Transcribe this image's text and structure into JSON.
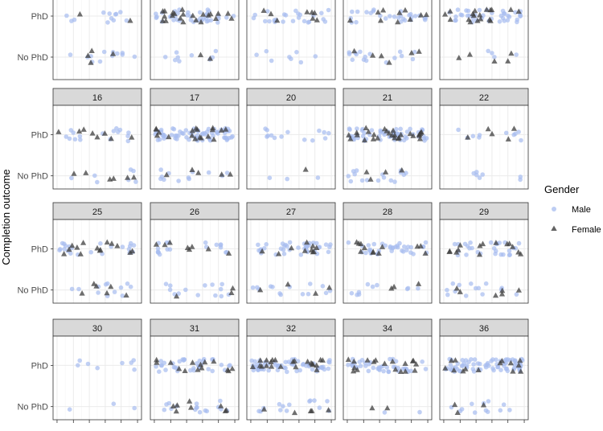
{
  "chart_data": {
    "type": "scatter",
    "ylabel": "Completion outcome",
    "y_categories": [
      "PhD",
      "No PhD"
    ],
    "x_range": [
      0,
      1
    ],
    "grid": true,
    "legend": {
      "title": "Gender",
      "position": "right",
      "entries": [
        {
          "label": "Male",
          "shape": "circle",
          "color": "#a7bcef"
        },
        {
          "label": "Female",
          "shape": "triangle",
          "color": "#3d3d3d"
        }
      ]
    },
    "panels": [
      {
        "label": "",
        "row": 0,
        "col": 0,
        "counts": {
          "PhD": {
            "Male": 12,
            "Female": 2
          },
          "No PhD": {
            "Male": 12,
            "Female": 4
          }
        }
      },
      {
        "label": "",
        "row": 0,
        "col": 1,
        "counts": {
          "PhD": {
            "Male": 38,
            "Female": 22
          },
          "No PhD": {
            "Male": 9,
            "Female": 2
          }
        }
      },
      {
        "label": "",
        "row": 0,
        "col": 2,
        "counts": {
          "PhD": {
            "Male": 24,
            "Female": 8
          },
          "No PhD": {
            "Male": 8,
            "Female": 0
          }
        }
      },
      {
        "label": "",
        "row": 0,
        "col": 3,
        "counts": {
          "PhD": {
            "Male": 28,
            "Female": 10
          },
          "No PhD": {
            "Male": 16,
            "Female": 6
          }
        }
      },
      {
        "label": "",
        "row": 0,
        "col": 4,
        "counts": {
          "PhD": {
            "Male": 40,
            "Female": 18
          },
          "No PhD": {
            "Male": 4,
            "Female": 5
          }
        }
      },
      {
        "label": "16",
        "row": 1,
        "col": 0,
        "counts": {
          "PhD": {
            "Male": 16,
            "Female": 8
          },
          "No PhD": {
            "Male": 7,
            "Female": 6
          }
        }
      },
      {
        "label": "17",
        "row": 1,
        "col": 1,
        "counts": {
          "PhD": {
            "Male": 70,
            "Female": 18
          },
          "No PhD": {
            "Male": 12,
            "Female": 5
          }
        }
      },
      {
        "label": "20",
        "row": 1,
        "col": 2,
        "counts": {
          "PhD": {
            "Male": 14,
            "Female": 0
          },
          "No PhD": {
            "Male": 3,
            "Female": 1
          }
        }
      },
      {
        "label": "21",
        "row": 1,
        "col": 3,
        "counts": {
          "PhD": {
            "Male": 60,
            "Female": 28
          },
          "No PhD": {
            "Male": 16,
            "Female": 4
          }
        }
      },
      {
        "label": "22",
        "row": 1,
        "col": 4,
        "counts": {
          "PhD": {
            "Male": 10,
            "Female": 5
          },
          "No PhD": {
            "Male": 7,
            "Female": 0
          }
        }
      },
      {
        "label": "25",
        "row": 2,
        "col": 0,
        "counts": {
          "PhD": {
            "Male": 22,
            "Female": 14
          },
          "No PhD": {
            "Male": 12,
            "Female": 6
          }
        }
      },
      {
        "label": "26",
        "row": 2,
        "col": 1,
        "counts": {
          "PhD": {
            "Male": 18,
            "Female": 8
          },
          "No PhD": {
            "Male": 14,
            "Female": 3
          }
        }
      },
      {
        "label": "27",
        "row": 2,
        "col": 2,
        "counts": {
          "PhD": {
            "Male": 38,
            "Female": 10
          },
          "No PhD": {
            "Male": 14,
            "Female": 4
          }
        }
      },
      {
        "label": "28",
        "row": 2,
        "col": 3,
        "counts": {
          "PhD": {
            "Male": 36,
            "Female": 12
          },
          "No PhD": {
            "Male": 10,
            "Female": 3
          }
        }
      },
      {
        "label": "29",
        "row": 2,
        "col": 4,
        "counts": {
          "PhD": {
            "Male": 28,
            "Female": 14
          },
          "No PhD": {
            "Male": 14,
            "Female": 6
          }
        }
      },
      {
        "label": "30",
        "row": 3,
        "col": 0,
        "counts": {
          "PhD": {
            "Male": 8,
            "Female": 0
          },
          "No PhD": {
            "Male": 3,
            "Female": 0
          }
        }
      },
      {
        "label": "31",
        "row": 3,
        "col": 1,
        "counts": {
          "PhD": {
            "Male": 36,
            "Female": 14
          },
          "No PhD": {
            "Male": 16,
            "Female": 8
          }
        }
      },
      {
        "label": "32",
        "row": 3,
        "col": 2,
        "counts": {
          "PhD": {
            "Male": 60,
            "Female": 22
          },
          "No PhD": {
            "Male": 14,
            "Female": 5
          }
        }
      },
      {
        "label": "34",
        "row": 3,
        "col": 3,
        "counts": {
          "PhD": {
            "Male": 42,
            "Female": 18
          },
          "No PhD": {
            "Male": 2,
            "Female": 2
          }
        }
      },
      {
        "label": "36",
        "row": 3,
        "col": 4,
        "counts": {
          "PhD": {
            "Male": 72,
            "Female": 14
          },
          "No PhD": {
            "Male": 12,
            "Female": 3
          }
        }
      }
    ]
  }
}
